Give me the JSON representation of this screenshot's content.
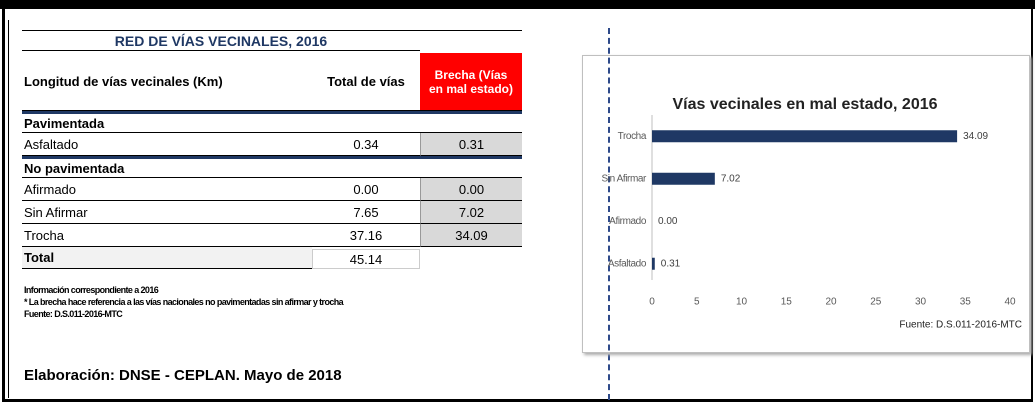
{
  "table": {
    "title": "RED DE VÍAS VECINALES, 2016",
    "headers": [
      "Longitud de vías vecinales (Km)",
      "Total de vías",
      "Brecha (Vías en mal estado)"
    ],
    "groups": [
      {
        "name": "Pavimentada",
        "rows": [
          [
            "Asfaltado",
            "0.34",
            "0.31"
          ]
        ]
      },
      {
        "name": "No pavimentada",
        "rows": [
          [
            "Afirmado",
            "0.00",
            "0.00"
          ],
          [
            "Sin Afirmar",
            "7.65",
            "7.02"
          ],
          [
            "Trocha",
            "37.16",
            "34.09"
          ]
        ]
      }
    ],
    "total": [
      "Total",
      "45.14"
    ],
    "notes": [
      "Información correspondiente a 2016",
      "* La brecha hace referencia a las vías nacionales no pavimentadas sin afirmar y trocha",
      "Fuente: D.S.011-2016-MTC"
    ],
    "footer": "Elaboración: DNSE -  CEPLAN. Mayo de 2018"
  },
  "chart_data": {
    "type": "bar",
    "orientation": "horizontal",
    "title": "Vías vecinales en mal estado, 2016",
    "categories": [
      "Trocha",
      "Sin Afirmar",
      "Afirmado",
      "Asfaltado"
    ],
    "values": [
      34.09,
      7.02,
      0,
      0.31
    ],
    "value_labels": [
      "34.09",
      "7.02",
      "0.00",
      "0.31"
    ],
    "color": "#1f3864",
    "xlim": [
      0,
      40
    ],
    "xticks": [
      0,
      5,
      10,
      15,
      20,
      25,
      30,
      35,
      40
    ],
    "source": "Fuente: D.S.011-2016-MTC"
  }
}
